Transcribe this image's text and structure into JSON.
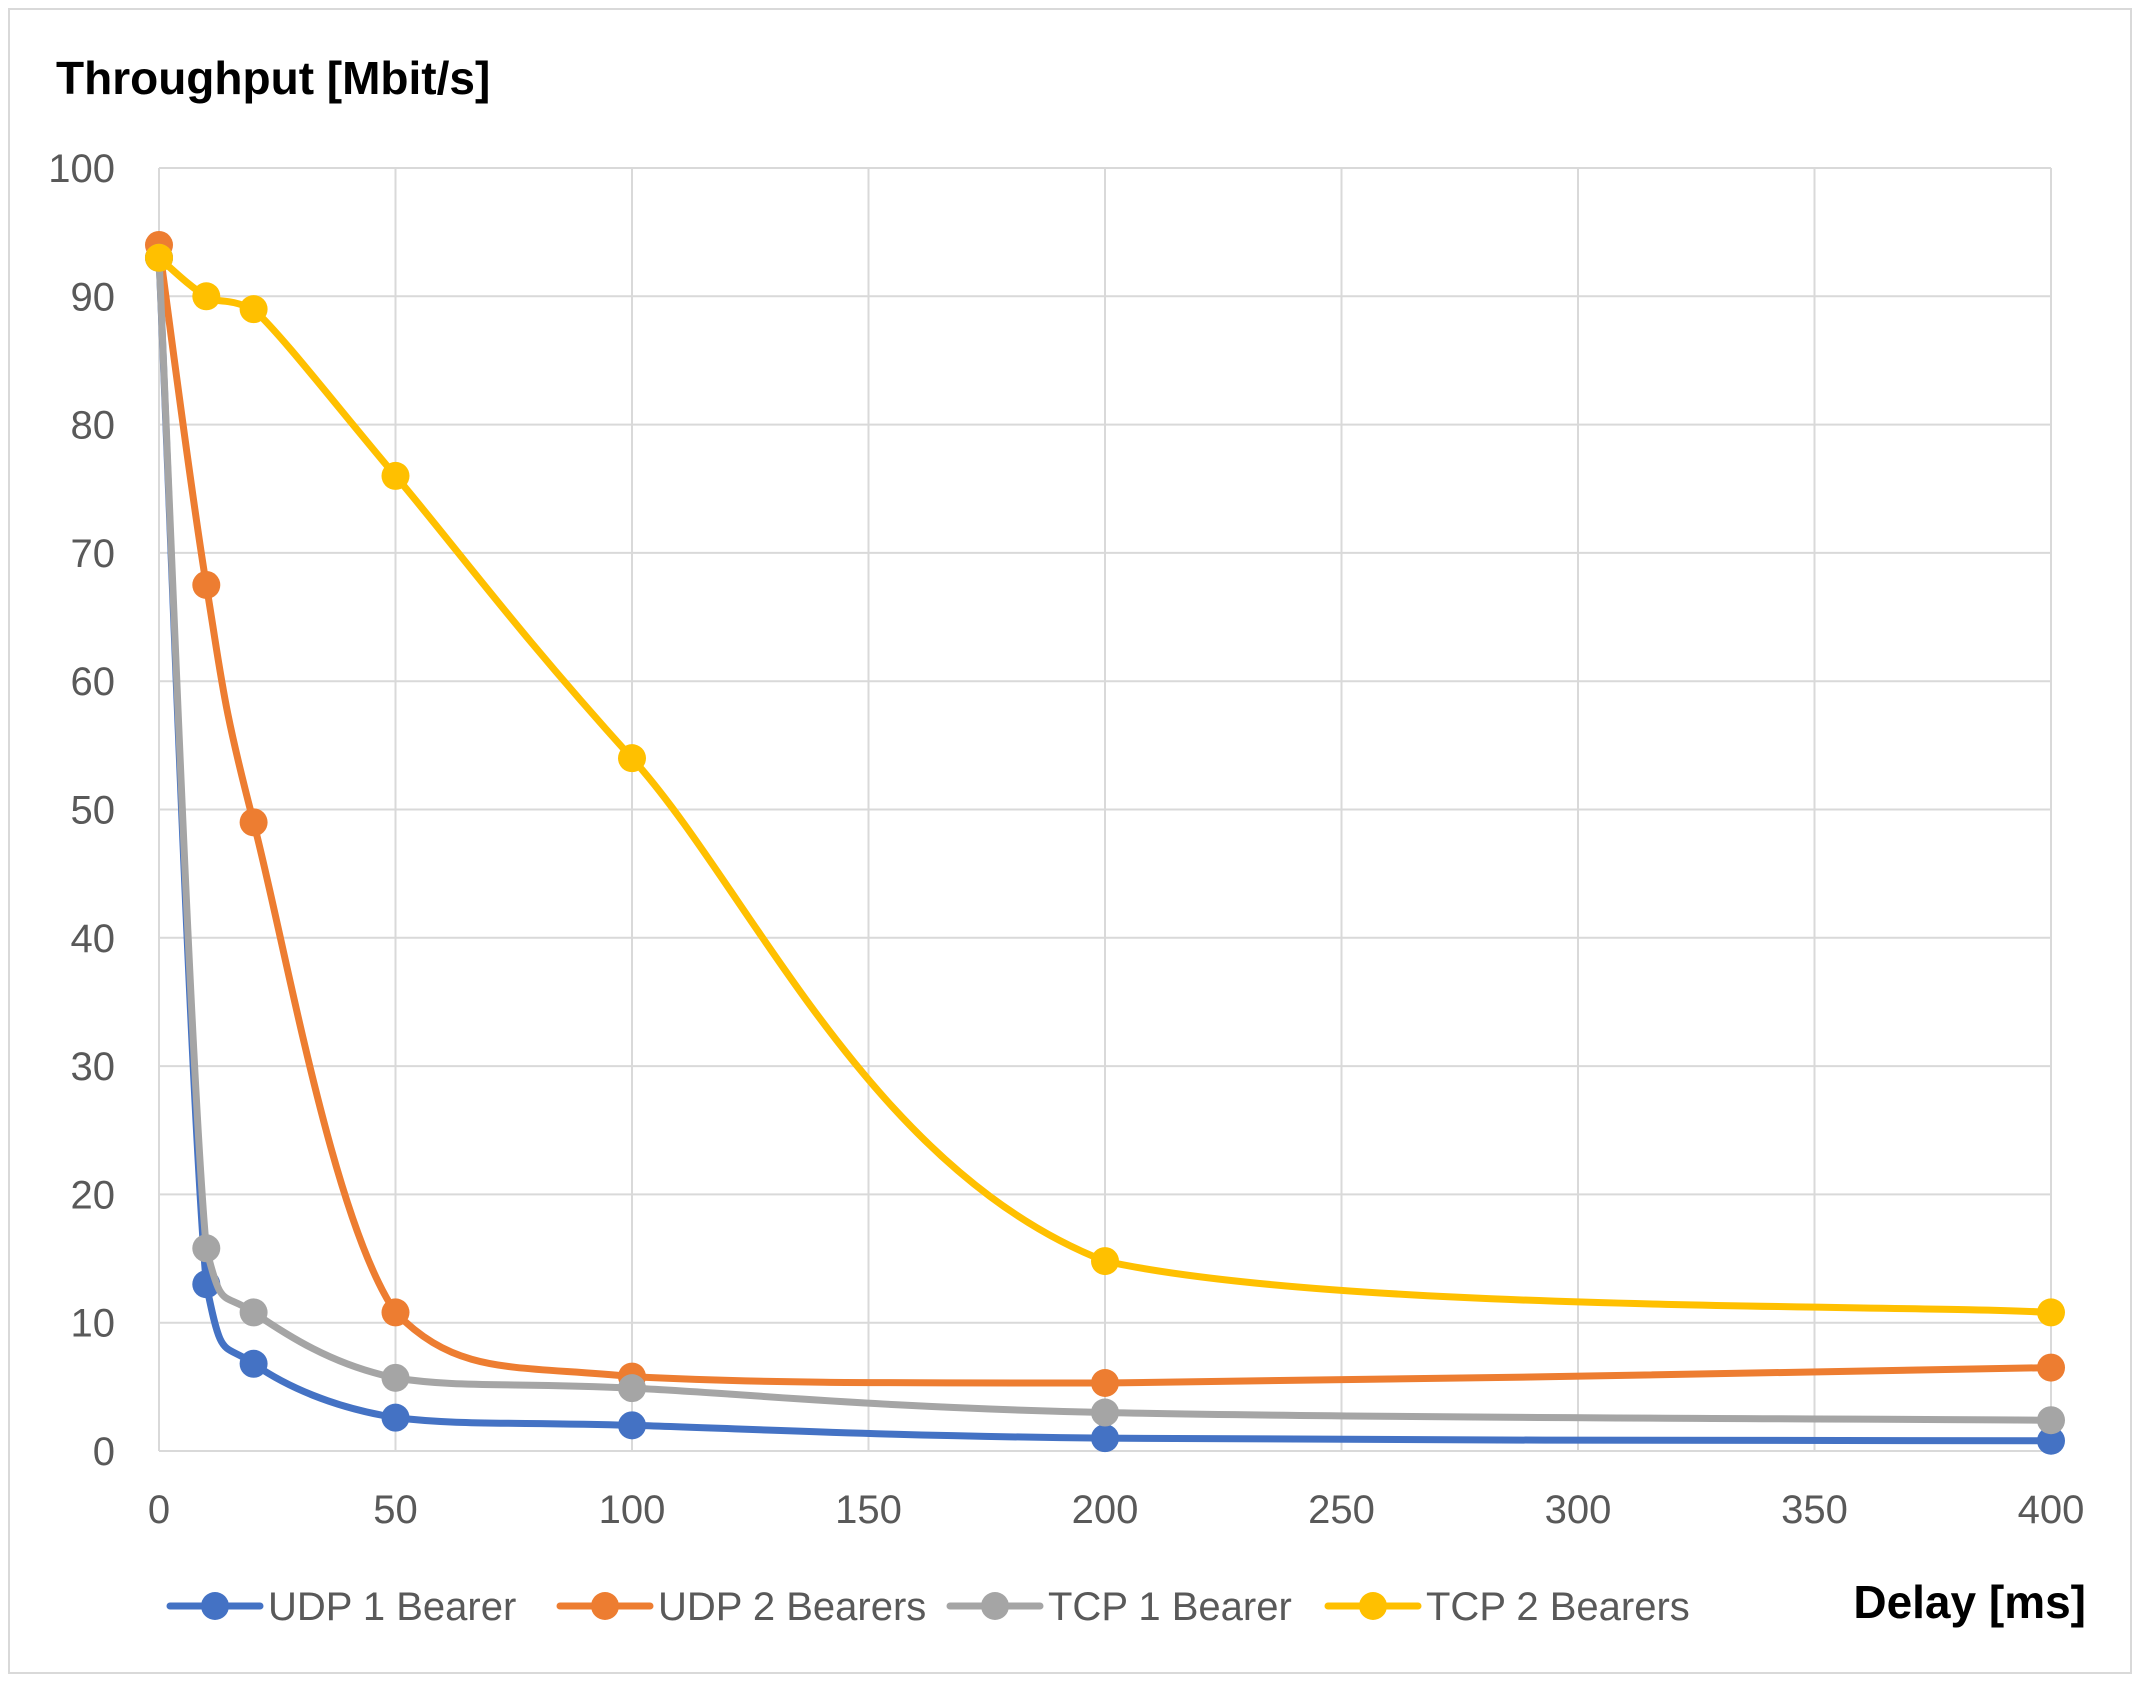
{
  "chart_data": {
    "type": "line",
    "smooth": true,
    "ylabel": "Throughput [Mbit/s]",
    "xlabel": "Delay [ms]",
    "xlim": [
      0,
      400
    ],
    "ylim": [
      0,
      100
    ],
    "x_ticks": [
      0,
      50,
      100,
      150,
      200,
      250,
      300,
      350,
      400
    ],
    "y_ticks": [
      0,
      10,
      20,
      30,
      40,
      50,
      60,
      70,
      80,
      90,
      100
    ],
    "x_tick_labels": [
      "0",
      "50",
      "100",
      "150",
      "200",
      "250",
      "300",
      "350",
      "400"
    ],
    "y_tick_labels": [
      "0",
      "10",
      "20",
      "30",
      "40",
      "50",
      "60",
      "70",
      "80",
      "90",
      "100"
    ],
    "grid": true,
    "legend_position": "bottom",
    "x": [
      0,
      10,
      20,
      50,
      100,
      200,
      400
    ],
    "series": [
      {
        "name": "UDP 1 Bearer",
        "color": "#4472c4",
        "values": [
          93,
          13,
          6.8,
          2.6,
          2,
          1,
          0.8
        ]
      },
      {
        "name": "UDP 2 Bearers",
        "color": "#ed7d31",
        "values": [
          94,
          67.5,
          49,
          10.8,
          5.8,
          5.3,
          6.5
        ]
      },
      {
        "name": "TCP 1 Bearer",
        "color": "#a5a5a5",
        "values": [
          93,
          15.8,
          10.8,
          5.7,
          4.9,
          3,
          2.4
        ]
      },
      {
        "name": "TCP 2 Bearers",
        "color": "#ffc000",
        "values": [
          93,
          90,
          89,
          76,
          54,
          14.8,
          10.8
        ]
      }
    ]
  }
}
